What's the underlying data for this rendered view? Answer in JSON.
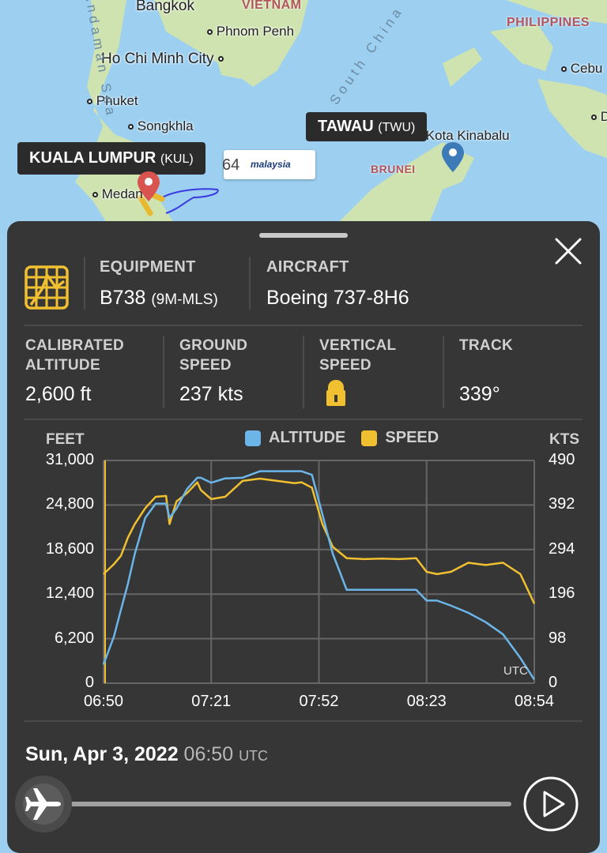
{
  "map": {
    "countries": [
      "VIETNAM",
      "PHILIPPINES",
      "BRUNEI"
    ],
    "cities": [
      "Bangkok",
      "Phnom Penh",
      "Ho Chi Minh City",
      "Phuket",
      "Songkhla",
      "Medan",
      "Kota Kinabalu",
      "Cebu",
      "D"
    ],
    "seas": [
      "Andaman Sea",
      "South China"
    ],
    "origin": {
      "name": "KUALA LUMPUR",
      "code": "(KUL)",
      "pin_color": "#d9534f"
    },
    "destination": {
      "name": "TAWAU",
      "code": "(TWU)",
      "pin_color": "#3d7ab8"
    },
    "flight_card": {
      "number": "MH2664",
      "visible_number": "64",
      "airline": "malaysia"
    }
  },
  "panel": {
    "close_icon": "close-icon",
    "equipment": {
      "label": "EQUIPMENT",
      "value": "B738",
      "registration": "(9M-MLS)"
    },
    "aircraft": {
      "label": "AIRCRAFT",
      "value": "Boeing 737-8H6"
    },
    "stats": [
      {
        "label1": "CALIBRATED",
        "label2": "ALTITUDE",
        "value": "2,600 ft"
      },
      {
        "label1": "GROUND",
        "label2": "SPEED",
        "value": "237 kts"
      },
      {
        "label1": "VERTICAL",
        "label2": "SPEED",
        "value": "lock-icon"
      },
      {
        "label1": "TRACK",
        "label2": "",
        "value": "339°"
      }
    ],
    "playback": {
      "date": "Sun, Apr 3, 2022",
      "time": "06:50",
      "tz": "UTC"
    }
  },
  "colors": {
    "altitude": "#6bb5e8",
    "speed": "#f0c030",
    "panel_bg": "#363636"
  },
  "chart_data": {
    "type": "line",
    "title": "",
    "legend": [
      "ALTITUDE",
      "SPEED"
    ],
    "legend_position": "top",
    "grid": true,
    "xlabel": "UTC",
    "ylabel": "FEET",
    "ylabel_right": "KTS",
    "x_ticks": [
      "06:50",
      "07:21",
      "07:52",
      "08:23",
      "08:54"
    ],
    "y_ticks_left": [
      "31,000",
      "24,800",
      "18,600",
      "12,400",
      "6,200",
      "0"
    ],
    "y_ticks_right": [
      "490",
      "392",
      "294",
      "196",
      "98",
      "0"
    ],
    "ylim": [
      0,
      31000
    ],
    "ylim_right": [
      0,
      490
    ],
    "x": [
      "06:50",
      "06:53",
      "06:55",
      "06:57",
      "06:59",
      "07:02",
      "07:05",
      "07:08",
      "07:09",
      "07:11",
      "07:14",
      "07:17",
      "07:18",
      "07:21",
      "07:25",
      "07:30",
      "07:35",
      "07:40",
      "07:45",
      "07:47",
      "07:50",
      "07:53",
      "07:56",
      "08:00",
      "08:05",
      "08:10",
      "08:15",
      "08:20",
      "08:23",
      "08:26",
      "08:30",
      "08:35",
      "08:40",
      "08:45",
      "08:50",
      "08:54"
    ],
    "series": [
      {
        "name": "ALTITUDE",
        "unit": "ft",
        "values": [
          2600,
          6500,
          10200,
          13800,
          18000,
          23000,
          25000,
          25000,
          23000,
          24300,
          27000,
          28600,
          28600,
          27900,
          28500,
          28600,
          29500,
          29500,
          29500,
          29500,
          29000,
          23500,
          18000,
          13000,
          13000,
          13000,
          13000,
          13000,
          11500,
          11500,
          10800,
          9800,
          8500,
          6800,
          3500,
          500
        ]
      },
      {
        "name": "SPEED",
        "unit": "kts",
        "values": [
          240,
          262,
          280,
          320,
          350,
          385,
          410,
          412,
          350,
          400,
          418,
          442,
          425,
          405,
          410,
          445,
          450,
          445,
          440,
          442,
          430,
          350,
          300,
          275,
          273,
          274,
          273,
          275,
          245,
          240,
          245,
          265,
          260,
          265,
          240,
          175
        ]
      }
    ]
  }
}
